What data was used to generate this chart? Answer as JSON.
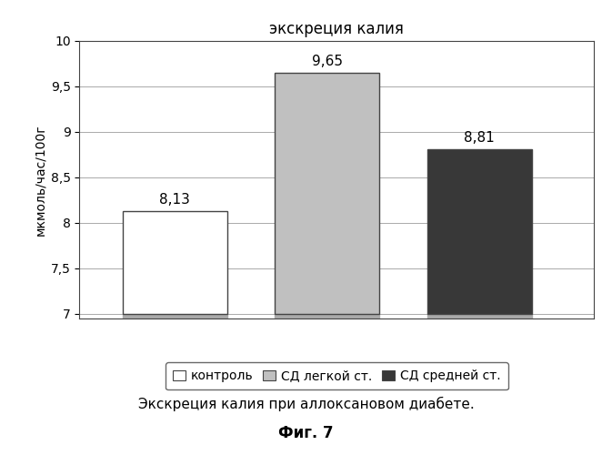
{
  "title": "экскреция калия",
  "categories": [
    "контроль",
    "СД легкой ст.",
    "СД средней ст."
  ],
  "values": [
    8.13,
    9.65,
    8.81
  ],
  "bar_colors": [
    "#ffffff",
    "#c0c0c0",
    "#383838"
  ],
  "bar_edge_colors": [
    "#444444",
    "#444444",
    "#444444"
  ],
  "shadow_color": "#aaaaaa",
  "ylabel": "мкмоль/час/100г",
  "ylim": [
    7.0,
    10.0
  ],
  "yticks": [
    7.0,
    7.5,
    8.0,
    8.5,
    9.0,
    9.5,
    10.0
  ],
  "ytick_labels": [
    "7",
    "7,5",
    "8",
    "8,5",
    "9",
    "9,5",
    "10"
  ],
  "value_labels": [
    "8,13",
    "9,65",
    "8,81"
  ],
  "caption_line1": "Экскреция калия при аллоксановом диабете.",
  "caption_line2": "Фиг. 7",
  "legend_labels": [
    "контроль",
    "СД легкой ст.",
    "СД средней ст."
  ],
  "figure_bg": "#ffffff",
  "plot_bg": "#ffffff",
  "bar_width": 0.55,
  "bar_spacing": 0.15
}
